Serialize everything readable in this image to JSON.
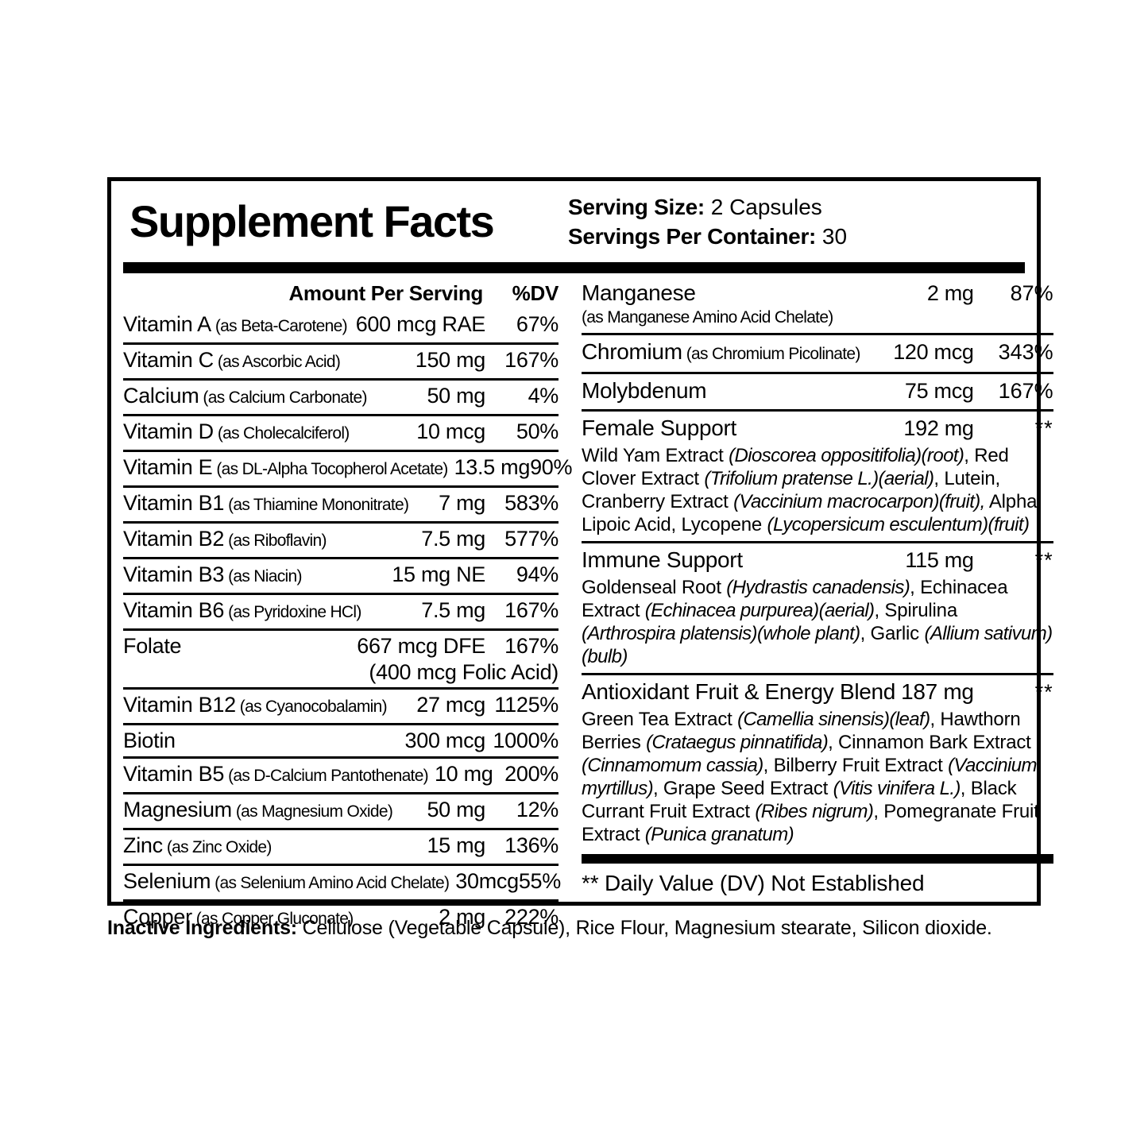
{
  "title": "Supplement Facts",
  "serving": {
    "size_label": "Serving Size:",
    "size_value": " 2 Capsules",
    "container_label": "Servings Per Container:",
    "container_value": " 30"
  },
  "left_column": {
    "header_amount": "Amount Per Serving",
    "header_dv": "%DV",
    "rows": [
      {
        "name": "Vitamin A",
        "form": "(as Beta-Carotene)",
        "amount": "600 mcg RAE",
        "dv": "67%"
      },
      {
        "name": "Vitamin C",
        "form": "(as Ascorbic Acid)",
        "amount": "150 mg",
        "dv": "167%"
      },
      {
        "name": "Calcium",
        "form": "(as Calcium Carbonate)",
        "amount": "50 mg",
        "dv": "4%"
      },
      {
        "name": "Vitamin D",
        "form": "(as Cholecalciferol)",
        "amount": "10 mcg",
        "dv": "50%"
      },
      {
        "name": "Vitamin E",
        "form": "(as DL-Alpha Tocopherol Acetate)",
        "amount": "13.5 mg",
        "dv": "90%"
      },
      {
        "name": "Vitamin B1",
        "form": "(as Thiamine Mononitrate)",
        "amount": "7 mg",
        "dv": "583%"
      },
      {
        "name": "Vitamin B2",
        "form": "(as Riboflavin)",
        "amount": "7.5 mg",
        "dv": "577%"
      },
      {
        "name": "Vitamin B3",
        "form": "(as Niacin)",
        "amount": "15 mg NE",
        "dv": "94%"
      },
      {
        "name": "Vitamin B6",
        "form": "(as Pyridoxine HCl)",
        "amount": "7.5 mg",
        "dv": "167%"
      },
      {
        "name": "Folate",
        "form": "",
        "amount": "667 mcg DFE",
        "dv": "167%",
        "amount2": "(400 mcg Folic Acid)"
      },
      {
        "name": "Vitamin B12",
        "form": "(as Cyanocobalamin)",
        "amount": "27 mcg",
        "dv": "1125%"
      },
      {
        "name": "Biotin",
        "form": "",
        "amount": "300 mcg",
        "dv": "1000%"
      },
      {
        "name": "Vitamin B5",
        "form": "(as D-Calcium Pantothenate)",
        "amount": "10 mg",
        "dv": "200%"
      },
      {
        "name": "Magnesium",
        "form": "(as Magnesium Oxide)",
        "amount": "50 mg",
        "dv": "12%"
      },
      {
        "name": "Zinc",
        "form": "(as Zinc Oxide)",
        "amount": "15 mg",
        "dv": "136%"
      },
      {
        "name": "Selenium",
        "form": "(as Selenium Amino Acid Chelate)",
        "amount": "30mcg",
        "dv": "55%"
      },
      {
        "name": "Copper",
        "form": "(as Copper Gluconate)",
        "amount": "2 mg",
        "dv": "222%"
      }
    ]
  },
  "right_column": {
    "rows": [
      {
        "name": "Manganese",
        "form": "",
        "form2": "(as Manganese Amino Acid Chelate)",
        "amount": "2 mg",
        "dv": "87%",
        "rule_after": true
      },
      {
        "name": "Chromium",
        "form": "(as Chromium Picolinate)",
        "amount": "120 mcg",
        "dv": "343%",
        "rule_after": true
      },
      {
        "name": "Molybdenum",
        "form": "",
        "amount": "75 mcg",
        "dv": "167%",
        "rule_after": true
      },
      {
        "name": "Female Support",
        "form": "",
        "amount": "192 mg",
        "dv": "**",
        "rule_after": true,
        "blend": [
          {
            "t": "Wild Yam Extract ",
            "i": false
          },
          {
            "t": "(Dioscorea oppositifolia)(root)",
            "i": true
          },
          {
            "t": ", Red Clover Extract ",
            "i": false
          },
          {
            "t": "(Trifolium pratense L.)(aerial)",
            "i": true
          },
          {
            "t": ", Lutein, Cranberry Extract ",
            "i": false
          },
          {
            "t": "(Vaccinium macrocarpon)(fruit),",
            "i": true
          },
          {
            "t": " Alpha Lipoic Acid, Lycopene ",
            "i": false
          },
          {
            "t": "(Lycopersicum esculentum)(fruit)",
            "i": true
          }
        ]
      },
      {
        "name": "Immune Support",
        "form": "",
        "amount": "115 mg",
        "dv": "**",
        "rule_after": true,
        "blend": [
          {
            "t": "Goldenseal Root ",
            "i": false
          },
          {
            "t": "(Hydrastis canadensis)",
            "i": true
          },
          {
            "t": ", Echinacea Extract ",
            "i": false
          },
          {
            "t": "(Echinacea purpurea)(aerial)",
            "i": true
          },
          {
            "t": ", Spirulina ",
            "i": false
          },
          {
            "t": "(Arthrospira platensis)(whole plant)",
            "i": true
          },
          {
            "t": ", Garlic ",
            "i": false
          },
          {
            "t": "(Allium sativum)(bulb)",
            "i": true
          }
        ]
      },
      {
        "name": "Antioxidant Fruit & Energy Blend",
        "form": "",
        "amount": "187 mg",
        "dv": "**",
        "inline_amount": true,
        "rule_after": false,
        "blend": [
          {
            "t": "Green Tea Extract ",
            "i": false
          },
          {
            "t": "(Camellia sinensis)(leaf)",
            "i": true
          },
          {
            "t": ", Hawthorn Berries ",
            "i": false
          },
          {
            "t": "(Crataegus pinnatifida)",
            "i": true
          },
          {
            "t": ", Cinnamon Bark Extract ",
            "i": false
          },
          {
            "t": "(Cinnamomum cassia)",
            "i": true
          },
          {
            "t": ", Bilberry Fruit Extract ",
            "i": false
          },
          {
            "t": "(Vaccinium myrtillus)",
            "i": true
          },
          {
            "t": ", Grape Seed Extract ",
            "i": false
          },
          {
            "t": "(Vitis vinifera L.)",
            "i": true
          },
          {
            "t": ", Black Currant Fruit Extract ",
            "i": false
          },
          {
            "t": "(Ribes nigrum)",
            "i": true
          },
          {
            "t": ", Pomegranate Fruit Extract ",
            "i": false
          },
          {
            "t": "(Punica granatum)",
            "i": true
          }
        ]
      }
    ],
    "footnote": "** Daily Value (DV) Not Established"
  },
  "footer": {
    "inactive_label": "Inactive Ingredients:",
    "inactive_text": " Cellulose (Vegetable Capsule), Rice Flour, Magnesium stearate, Silicon dioxide."
  }
}
